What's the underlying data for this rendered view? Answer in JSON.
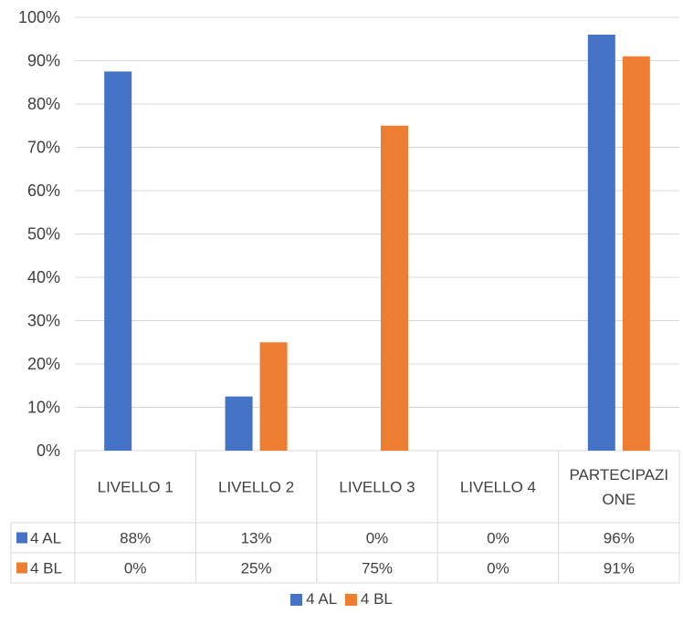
{
  "chart_data": {
    "type": "bar",
    "title": "",
    "xlabel": "",
    "ylabel": "",
    "categories": [
      "LIVELLO 1",
      "LIVELLO 2",
      "LIVELLO 3",
      "LIVELLO 4",
      "PARTECIPAZIONE"
    ],
    "category_label_lines": [
      [
        "LIVELLO 1"
      ],
      [
        "LIVELLO 2"
      ],
      [
        "LIVELLO 3"
      ],
      [
        "LIVELLO 4"
      ],
      [
        "PARTECIPAZI",
        "ONE"
      ]
    ],
    "series": [
      {
        "name": "4 AL",
        "color": "#4472C4",
        "values": [
          87.5,
          12.5,
          0,
          0,
          96
        ],
        "table_labels": [
          "88%",
          "13%",
          "0%",
          "0%",
          "96%"
        ]
      },
      {
        "name": "4 BL",
        "color": "#ED7D31",
        "values": [
          0,
          25,
          75,
          0,
          91
        ],
        "table_labels": [
          "0%",
          "25%",
          "75%",
          "0%",
          "91%"
        ]
      }
    ],
    "ylim": [
      0,
      100
    ],
    "yticks": [
      0,
      10,
      20,
      30,
      40,
      50,
      60,
      70,
      80,
      90,
      100
    ],
    "ytick_labels": [
      "0%",
      "10%",
      "20%",
      "30%",
      "40%",
      "50%",
      "60%",
      "70%",
      "80%",
      "90%",
      "100%"
    ],
    "grid": true,
    "legend": "bottom",
    "data_table": true
  }
}
